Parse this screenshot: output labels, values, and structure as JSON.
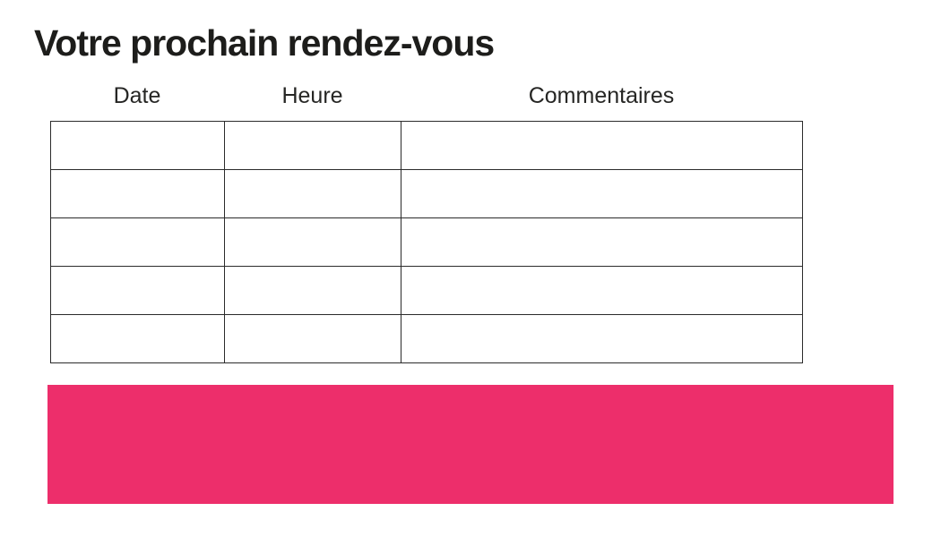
{
  "page": {
    "title": "Votre prochain rendez-vous"
  },
  "table": {
    "headers": [
      "Date",
      "Heure",
      "Commentaires"
    ],
    "rows": [
      [
        "",
        "",
        ""
      ],
      [
        "",
        "",
        ""
      ],
      [
        "",
        "",
        ""
      ],
      [
        "",
        "",
        ""
      ],
      [
        "",
        "",
        ""
      ]
    ]
  },
  "banner": {
    "color": "#ED2E6B"
  }
}
